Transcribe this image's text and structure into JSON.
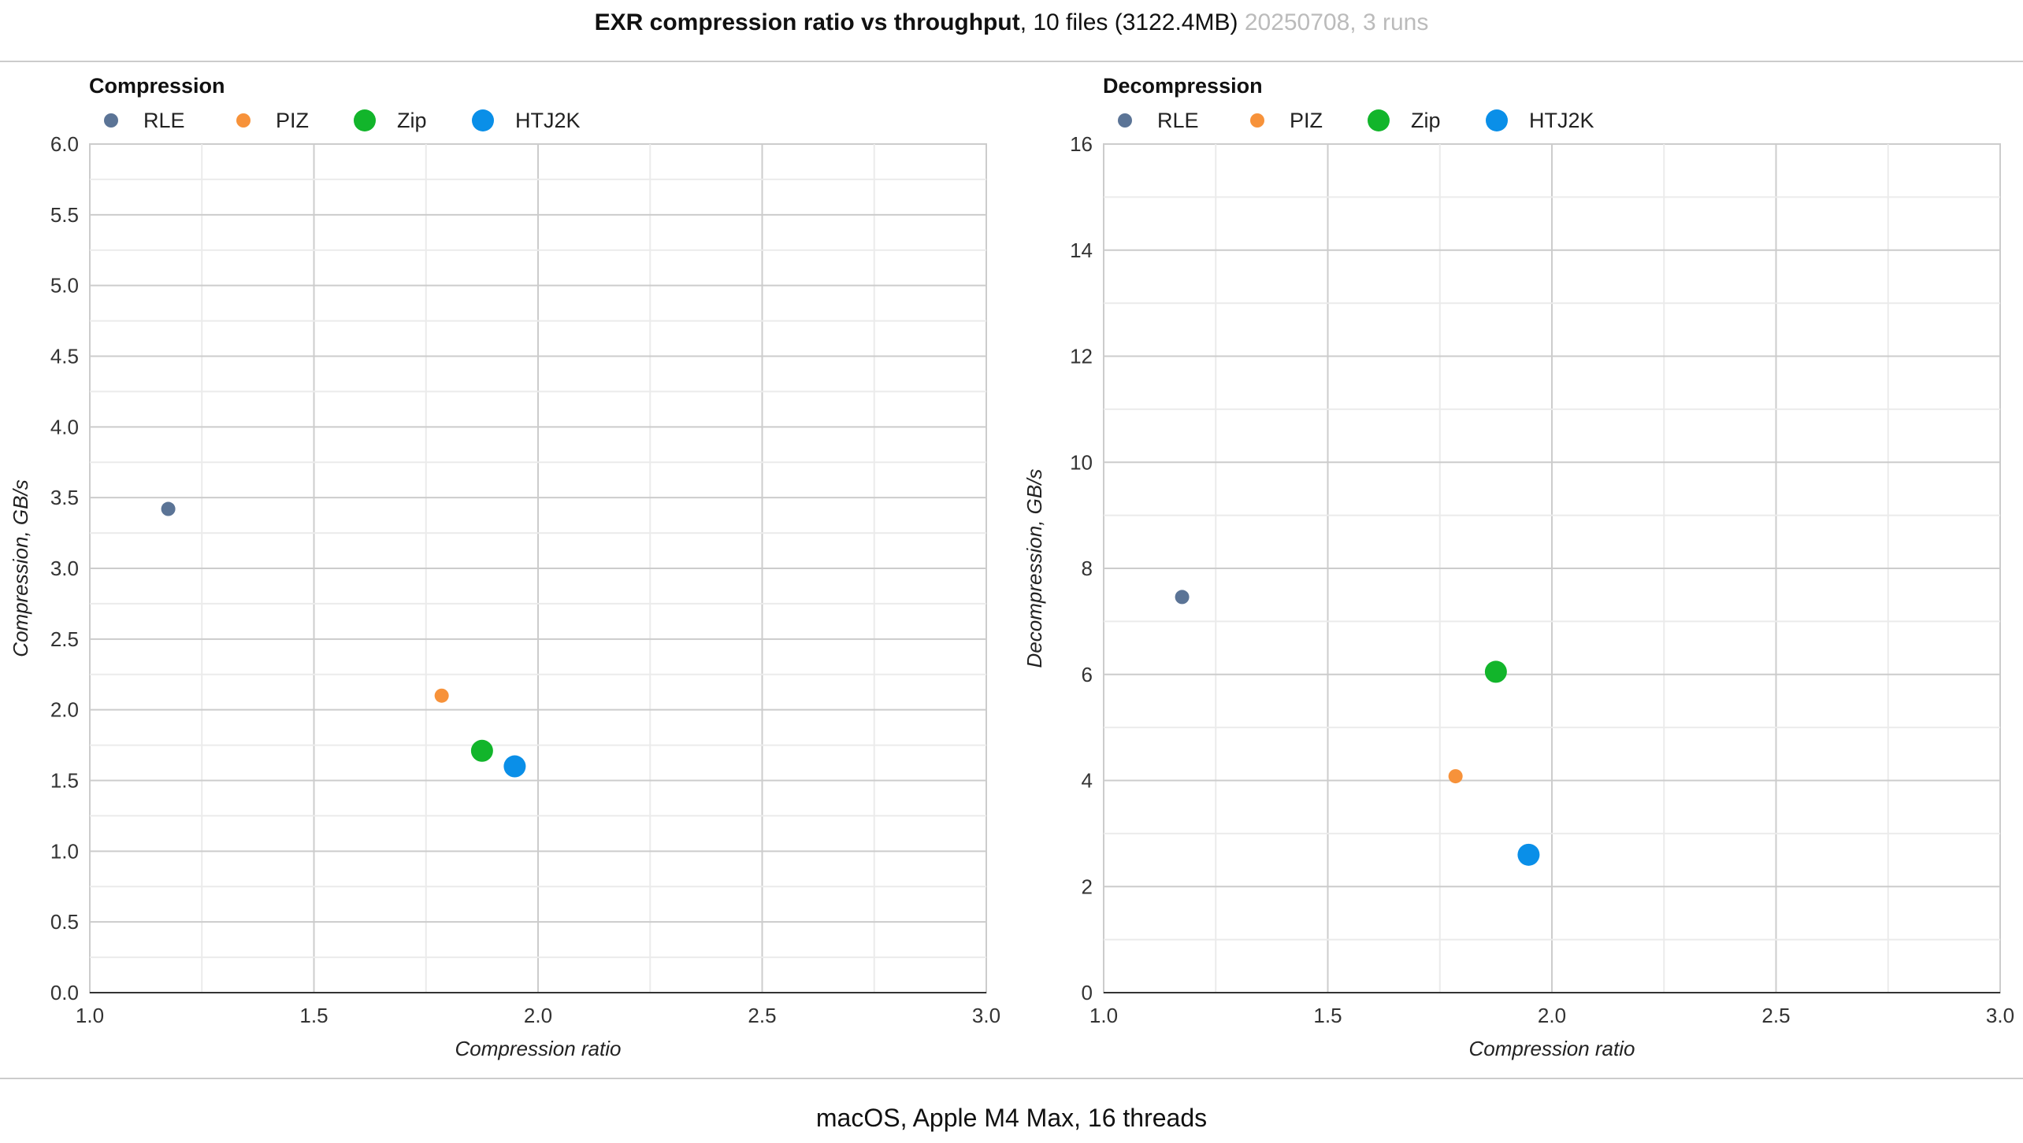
{
  "header": {
    "title_bold": "EXR compression ratio vs throughput",
    "title_info": ", 10 files (3122.4MB)",
    "title_meta": " 20250708, 3 runs"
  },
  "footer": {
    "text": "macOS, Apple M4 Max, 16 threads"
  },
  "chart_data": [
    {
      "type": "scatter",
      "title": "Compression",
      "xlabel": "Compression ratio",
      "ylabel": "Compression, GB/s",
      "xlim": [
        1.0,
        3.0
      ],
      "ylim": [
        0.0,
        6.0
      ],
      "xticks": [
        "1.0",
        "1.5",
        "2.0",
        "2.5",
        "3.0"
      ],
      "yticks": [
        "0.0",
        "0.5",
        "1.0",
        "1.5",
        "2.0",
        "2.5",
        "3.0",
        "3.5",
        "4.0",
        "4.5",
        "5.0",
        "5.5",
        "6.0"
      ],
      "grid": true,
      "legend_position": "top-left",
      "series": [
        {
          "name": "RLE",
          "color": "#5b7496",
          "points": [
            [
              1.175,
              3.42
            ]
          ]
        },
        {
          "name": "PIZ",
          "color": "#f7923a",
          "points": [
            [
              1.785,
              2.1
            ]
          ]
        },
        {
          "name": "Zip",
          "color": "#12b52b",
          "points": [
            [
              1.875,
              1.71
            ]
          ]
        },
        {
          "name": "HTJ2K",
          "color": "#0a8fe8",
          "points": [
            [
              1.948,
              1.6
            ]
          ]
        }
      ]
    },
    {
      "type": "scatter",
      "title": "Decompression",
      "xlabel": "Compression ratio",
      "ylabel": "Decompression, GB/s",
      "xlim": [
        1.0,
        3.0
      ],
      "ylim": [
        0,
        16
      ],
      "xticks": [
        "1.0",
        "1.5",
        "2.0",
        "2.5",
        "3.0"
      ],
      "yticks": [
        "0",
        "2",
        "4",
        "6",
        "8",
        "10",
        "12",
        "14",
        "16"
      ],
      "grid": true,
      "legend_position": "top-left",
      "series": [
        {
          "name": "RLE",
          "color": "#5b7496",
          "points": [
            [
              1.175,
              7.46
            ]
          ]
        },
        {
          "name": "PIZ",
          "color": "#f7923a",
          "points": [
            [
              1.785,
              4.08
            ]
          ]
        },
        {
          "name": "Zip",
          "color": "#12b52b",
          "points": [
            [
              1.875,
              6.05
            ]
          ]
        },
        {
          "name": "HTJ2K",
          "color": "#0a8fe8",
          "points": [
            [
              1.948,
              2.6
            ]
          ]
        }
      ]
    }
  ]
}
